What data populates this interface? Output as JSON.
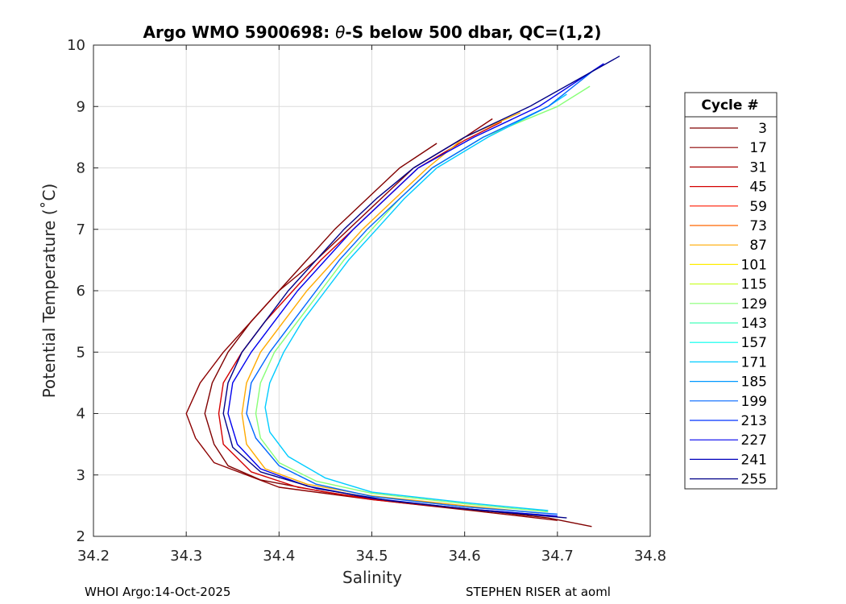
{
  "chart_data": {
    "type": "line",
    "title_prefix": "Argo WMO 5900698: ",
    "title_theta": "θ",
    "title_suffix": "-S below 500 dbar,  QC=(1,2)",
    "xlabel": "Salinity",
    "ylabel": "Potential Temperature (˚C)",
    "xlim": [
      34.2,
      34.8
    ],
    "ylim": [
      2,
      10
    ],
    "xticks": [
      34.2,
      34.3,
      34.4,
      34.5,
      34.6,
      34.7,
      34.8
    ],
    "xtick_labels": [
      "34.2",
      "34.3",
      "34.4",
      "34.5",
      "34.6",
      "34.7",
      "34.8"
    ],
    "yticks": [
      2,
      3,
      4,
      5,
      6,
      7,
      8,
      9,
      10
    ],
    "ytick_labels": [
      "2",
      "3",
      "4",
      "5",
      "6",
      "7",
      "8",
      "9",
      "10"
    ],
    "grid": true,
    "legend_placement": "right-outside",
    "legend_title": "Cycle #",
    "legend": [
      {
        "label": "3",
        "color": "#800000"
      },
      {
        "label": "17",
        "color": "#8c0000"
      },
      {
        "label": "31",
        "color": "#a80000"
      },
      {
        "label": "45",
        "color": "#d40000"
      },
      {
        "label": "59",
        "color": "#ff1a00"
      },
      {
        "label": "73",
        "color": "#ff6600"
      },
      {
        "label": "87",
        "color": "#ffaa00"
      },
      {
        "label": "101",
        "color": "#ffee00"
      },
      {
        "label": "115",
        "color": "#ccff33"
      },
      {
        "label": "129",
        "color": "#88ff77"
      },
      {
        "label": "143",
        "color": "#44ffbb"
      },
      {
        "label": "157",
        "color": "#00ffee"
      },
      {
        "label": "171",
        "color": "#00ccff"
      },
      {
        "label": "185",
        "color": "#0099ff"
      },
      {
        "label": "199",
        "color": "#0066ff"
      },
      {
        "label": "213",
        "color": "#0033ff"
      },
      {
        "label": "227",
        "color": "#0000ee"
      },
      {
        "label": "241",
        "color": "#0000bb"
      },
      {
        "label": "255",
        "color": "#000088"
      }
    ],
    "series": [
      {
        "name": "cycle 3",
        "color": "#800000",
        "points": [
          [
            34.737,
            2.16
          ],
          [
            34.69,
            2.3
          ],
          [
            34.62,
            2.42
          ],
          [
            34.53,
            2.55
          ],
          [
            34.45,
            2.72
          ],
          [
            34.38,
            2.92
          ],
          [
            34.345,
            3.15
          ],
          [
            34.33,
            3.5
          ],
          [
            34.32,
            4.0
          ],
          [
            34.328,
            4.5
          ],
          [
            34.345,
            5.0
          ],
          [
            34.37,
            5.5
          ],
          [
            34.4,
            6.0
          ],
          [
            34.43,
            6.5
          ],
          [
            34.46,
            7.0
          ],
          [
            34.495,
            7.5
          ],
          [
            34.53,
            8.0
          ],
          [
            34.57,
            8.4
          ]
        ]
      },
      {
        "name": "cycle 17",
        "color": "#8c0000",
        "points": [
          [
            34.7,
            2.26
          ],
          [
            34.62,
            2.4
          ],
          [
            34.5,
            2.6
          ],
          [
            34.4,
            2.8
          ],
          [
            34.33,
            3.2
          ],
          [
            34.31,
            3.6
          ],
          [
            34.3,
            4.0
          ],
          [
            34.315,
            4.5
          ],
          [
            34.34,
            5.0
          ],
          [
            34.37,
            5.5
          ],
          [
            34.4,
            6.0
          ],
          [
            34.44,
            6.5
          ],
          [
            34.475,
            7.0
          ],
          [
            34.51,
            7.5
          ],
          [
            34.545,
            8.0
          ],
          [
            34.6,
            8.5
          ],
          [
            34.63,
            8.8
          ]
        ]
      },
      {
        "name": "cycle 45",
        "color": "#d40000",
        "points": [
          [
            34.68,
            2.35
          ],
          [
            34.6,
            2.45
          ],
          [
            34.5,
            2.6
          ],
          [
            34.42,
            2.8
          ],
          [
            34.37,
            3.05
          ],
          [
            34.34,
            3.5
          ],
          [
            34.335,
            4.0
          ],
          [
            34.34,
            4.5
          ],
          [
            34.36,
            5.0
          ],
          [
            34.385,
            5.5
          ],
          [
            34.415,
            6.0
          ],
          [
            34.445,
            6.5
          ],
          [
            34.48,
            7.0
          ],
          [
            34.515,
            7.5
          ],
          [
            34.55,
            8.0
          ],
          [
            34.6,
            8.45
          ],
          [
            34.64,
            8.75
          ]
        ]
      },
      {
        "name": "cycle 87",
        "color": "#ffaa00",
        "points": [
          [
            34.68,
            2.38
          ],
          [
            34.6,
            2.5
          ],
          [
            34.5,
            2.66
          ],
          [
            34.43,
            2.85
          ],
          [
            34.385,
            3.1
          ],
          [
            34.365,
            3.5
          ],
          [
            34.36,
            4.0
          ],
          [
            34.365,
            4.5
          ],
          [
            34.38,
            5.0
          ],
          [
            34.405,
            5.5
          ],
          [
            34.43,
            6.0
          ],
          [
            34.46,
            6.5
          ],
          [
            34.49,
            7.0
          ],
          [
            34.525,
            7.5
          ],
          [
            34.56,
            8.0
          ],
          [
            34.6,
            8.5
          ],
          [
            34.66,
            8.9
          ]
        ]
      },
      {
        "name": "cycle 129",
        "color": "#88ff77",
        "points": [
          [
            34.69,
            2.4
          ],
          [
            34.6,
            2.53
          ],
          [
            34.5,
            2.7
          ],
          [
            34.44,
            2.9
          ],
          [
            34.4,
            3.2
          ],
          [
            34.38,
            3.6
          ],
          [
            34.375,
            4.0
          ],
          [
            34.38,
            4.5
          ],
          [
            34.395,
            5.0
          ],
          [
            34.42,
            5.5
          ],
          [
            34.445,
            6.0
          ],
          [
            34.47,
            6.5
          ],
          [
            34.5,
            7.0
          ],
          [
            34.53,
            7.5
          ],
          [
            34.565,
            8.0
          ],
          [
            34.62,
            8.5
          ],
          [
            34.7,
            9.0
          ],
          [
            34.735,
            9.33
          ]
        ]
      },
      {
        "name": "cycle 171",
        "color": "#00ccff",
        "points": [
          [
            34.69,
            2.42
          ],
          [
            34.6,
            2.55
          ],
          [
            34.5,
            2.72
          ],
          [
            34.45,
            2.95
          ],
          [
            34.41,
            3.3
          ],
          [
            34.39,
            3.7
          ],
          [
            34.385,
            4.1
          ],
          [
            34.39,
            4.5
          ],
          [
            34.405,
            5.0
          ],
          [
            34.425,
            5.5
          ],
          [
            34.45,
            6.0
          ],
          [
            34.475,
            6.5
          ],
          [
            34.505,
            7.0
          ],
          [
            34.535,
            7.5
          ],
          [
            34.57,
            8.0
          ],
          [
            34.625,
            8.5
          ],
          [
            34.69,
            9.0
          ],
          [
            34.71,
            9.2
          ]
        ]
      },
      {
        "name": "cycle 199",
        "color": "#0066ff",
        "points": [
          [
            34.7,
            2.36
          ],
          [
            34.6,
            2.48
          ],
          [
            34.5,
            2.65
          ],
          [
            34.44,
            2.85
          ],
          [
            34.4,
            3.15
          ],
          [
            34.375,
            3.6
          ],
          [
            34.365,
            4.0
          ],
          [
            34.37,
            4.5
          ],
          [
            34.39,
            5.0
          ],
          [
            34.415,
            5.5
          ],
          [
            34.44,
            6.0
          ],
          [
            34.465,
            6.5
          ],
          [
            34.495,
            7.0
          ],
          [
            34.53,
            7.5
          ],
          [
            34.565,
            8.0
          ],
          [
            34.62,
            8.5
          ],
          [
            34.69,
            9.0
          ],
          [
            34.74,
            9.6
          ]
        ]
      },
      {
        "name": "cycle 227",
        "color": "#0000ee",
        "points": [
          [
            34.7,
            2.33
          ],
          [
            34.6,
            2.45
          ],
          [
            34.5,
            2.62
          ],
          [
            34.43,
            2.82
          ],
          [
            34.38,
            3.1
          ],
          [
            34.355,
            3.5
          ],
          [
            34.345,
            4.0
          ],
          [
            34.35,
            4.5
          ],
          [
            34.37,
            5.0
          ],
          [
            34.395,
            5.5
          ],
          [
            34.42,
            6.0
          ],
          [
            34.45,
            6.5
          ],
          [
            34.48,
            7.0
          ],
          [
            34.515,
            7.5
          ],
          [
            34.55,
            8.0
          ],
          [
            34.61,
            8.5
          ],
          [
            34.68,
            9.0
          ],
          [
            34.75,
            9.7
          ]
        ]
      },
      {
        "name": "cycle 255",
        "color": "#000088",
        "points": [
          [
            34.71,
            2.3
          ],
          [
            34.62,
            2.42
          ],
          [
            34.52,
            2.58
          ],
          [
            34.44,
            2.78
          ],
          [
            34.38,
            3.05
          ],
          [
            34.35,
            3.45
          ],
          [
            34.34,
            4.0
          ],
          [
            34.345,
            4.5
          ],
          [
            34.36,
            5.0
          ],
          [
            34.385,
            5.5
          ],
          [
            34.41,
            6.0
          ],
          [
            34.44,
            6.5
          ],
          [
            34.47,
            7.0
          ],
          [
            34.505,
            7.5
          ],
          [
            34.545,
            8.0
          ],
          [
            34.6,
            8.5
          ],
          [
            34.67,
            9.0
          ],
          [
            34.767,
            9.82
          ]
        ]
      }
    ]
  },
  "footer": {
    "left": "WHOI Argo:14-Oct-2025",
    "right": "STEPHEN RISER at aoml"
  }
}
